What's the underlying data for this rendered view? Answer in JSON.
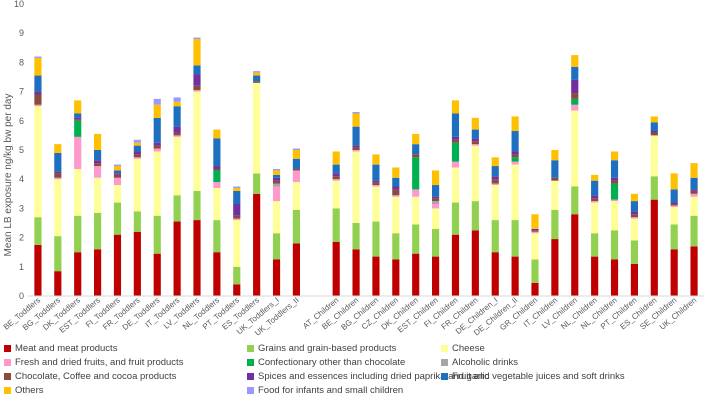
{
  "chart_data": {
    "type": "bar",
    "stacked": true,
    "title": "",
    "xlabel": "",
    "ylabel": "Mean LB exposure ng/kg bw per day",
    "ylim": [
      0,
      10
    ],
    "yticks": [
      0,
      1,
      2,
      3,
      4,
      5,
      6,
      7,
      8,
      9,
      10
    ],
    "grid": false,
    "legend_position": "bottom",
    "categories": [
      "BE_Toddlers",
      "BG_Toddlers",
      "DK_Toddlers",
      "EST_Toddlers",
      "FI_Toddlers",
      "FR_Toddlers",
      "DE_Toddlers",
      "IT_Toddlers",
      "LV_Toddlers",
      "NL_Toddlers",
      "PT_Toddlers",
      "ES_Toddlers",
      "UK_Toddlers_I",
      "UK_Toddlers_II",
      "",
      "AT_Children",
      "BE_Children",
      "BG_Children",
      "CZ_Children",
      "DK_Children",
      "EST_Children",
      "FI_Children",
      "FR_Children",
      "DE_Children_I",
      "DE_Children_II",
      "GR_Children",
      "IT_Children",
      "LV_Children",
      "NL_Children",
      "NL_Children",
      "PT_Children",
      "ES_Children",
      "SE_Children",
      "UK_Children"
    ],
    "series": [
      {
        "name": "Meat and meat products",
        "color": "#C00000",
        "values": [
          1.75,
          0.85,
          1.5,
          1.6,
          2.1,
          2.2,
          1.45,
          2.55,
          2.6,
          1.5,
          0.4,
          3.5,
          1.25,
          1.8,
          0,
          1.85,
          1.6,
          1.35,
          1.25,
          1.45,
          1.35,
          2.1,
          2.25,
          1.5,
          1.35,
          0.45,
          1.95,
          2.8,
          1.35,
          1.25,
          1.1,
          3.3,
          1.6,
          1.7
        ]
      },
      {
        "name": "Grains and grain-based products",
        "color": "#92D050",
        "values": [
          0.95,
          1.2,
          1.25,
          1.25,
          1.1,
          0.7,
          1.3,
          0.9,
          1.0,
          1.1,
          0.6,
          0.7,
          0.9,
          1.15,
          0,
          1.15,
          0.9,
          1.2,
          0.9,
          1.0,
          0.95,
          1.1,
          1.0,
          1.1,
          1.25,
          0.8,
          1.0,
          0.95,
          0.8,
          1.0,
          0.8,
          0.8,
          0.85,
          1.05
        ]
      },
      {
        "name": "Cheese",
        "color": "#FFFF99",
        "values": [
          3.8,
          1.95,
          1.6,
          1.2,
          0.6,
          1.8,
          2.2,
          2.0,
          3.4,
          1.1,
          1.6,
          3.1,
          1.1,
          0.95,
          0,
          0.95,
          2.45,
          1.2,
          1.25,
          0.95,
          0.7,
          1.2,
          1.9,
          1.2,
          1.9,
          0.9,
          1.0,
          2.6,
          1.05,
          1.0,
          0.75,
          1.4,
          0.6,
          0.65
        ]
      },
      {
        "name": "Fresh and dried fruits, and fruit products",
        "color": "#FF99CC",
        "values": [
          0.05,
          0.05,
          1.1,
          0.4,
          0.25,
          0.05,
          0.1,
          0.05,
          0.05,
          0.2,
          0.05,
          0,
          0.5,
          0.4,
          0,
          0.05,
          0.05,
          0.05,
          0.05,
          0.25,
          0.15,
          0.2,
          0.05,
          0.05,
          0.1,
          0.05,
          0,
          0.2,
          0.05,
          0.05,
          0.05,
          0,
          0.05,
          0.1
        ]
      },
      {
        "name": "Confectionary other than chocolate",
        "color": "#00B050",
        "values": [
          0,
          0,
          0.55,
          0,
          0,
          0,
          0,
          0,
          0,
          0.4,
          0,
          0,
          0,
          0,
          0,
          0,
          0,
          0,
          0,
          1.1,
          0,
          0.65,
          0,
          0,
          0.15,
          0,
          0,
          0.2,
          0,
          0.55,
          0,
          0,
          0,
          0
        ]
      },
      {
        "name": "Alcoholic drinks",
        "color": "#A6A6A6",
        "values": [
          0,
          0,
          0,
          0,
          0,
          0,
          0,
          0,
          0,
          0,
          0,
          0,
          0.1,
          0,
          0,
          0,
          0,
          0,
          0,
          0,
          0.1,
          0,
          0,
          0,
          0,
          0,
          0,
          0,
          0,
          0,
          0,
          0,
          0,
          0
        ]
      },
      {
        "name": "Chocolate, Coffee and cocoa products",
        "color": "#8B4B3C",
        "values": [
          0.35,
          0.15,
          0.05,
          0.1,
          0.1,
          0.1,
          0.1,
          0.1,
          0.15,
          0.05,
          0.1,
          0.05,
          0.1,
          0.05,
          0,
          0.1,
          0.1,
          0.1,
          0.2,
          0.1,
          0.1,
          0.1,
          0.1,
          0.15,
          0.1,
          0.05,
          0.1,
          0.2,
          0.1,
          0.1,
          0.1,
          0.1,
          0.05,
          0.1
        ]
      },
      {
        "name": "Spices and essences including dried paprika and garlic",
        "color": "#7030A0",
        "values": [
          0.1,
          0.05,
          0.05,
          0.1,
          0.05,
          0.1,
          0.1,
          0.2,
          0.4,
          0.1,
          0.4,
          0,
          0.1,
          0,
          0,
          0.1,
          0.05,
          0.05,
          0.1,
          0,
          0.05,
          0.1,
          0.1,
          0.1,
          0.1,
          0.05,
          0,
          0.45,
          0.1,
          0.1,
          0.1,
          0.05,
          0.05,
          0.05
        ]
      },
      {
        "name": "Fruit and vegetable juices and soft drinks",
        "color": "#1F6FC0",
        "values": [
          0.55,
          0.65,
          0.15,
          0.35,
          0.1,
          0.2,
          0.85,
          0.7,
          0.3,
          0.95,
          0.45,
          0.2,
          0.1,
          0.35,
          0,
          0.3,
          0.65,
          0.55,
          0.3,
          0.35,
          0.4,
          0.8,
          0.3,
          0.35,
          0.7,
          0,
          0.6,
          0.45,
          0.5,
          0.6,
          0.35,
          0.3,
          0.45,
          0.4
        ]
      },
      {
        "name": "Others",
        "color": "#FFC000",
        "values": [
          0.6,
          0.3,
          0.45,
          0.55,
          0.15,
          0.1,
          0.45,
          0.15,
          0.9,
          0.3,
          0.1,
          0.1,
          0.15,
          0.3,
          0,
          0.45,
          0.45,
          0.35,
          0.35,
          0.35,
          0.5,
          0.45,
          0.4,
          0.3,
          0.5,
          0.5,
          0.35,
          0.4,
          0.2,
          0.3,
          0.25,
          0.2,
          0.55,
          0.5
        ]
      },
      {
        "name": "Food for infants and small children",
        "color": "#9999FF",
        "values": [
          0.05,
          0,
          0,
          0,
          0.05,
          0.1,
          0.2,
          0.15,
          0.05,
          0,
          0.05,
          0.05,
          0.05,
          0.05,
          0,
          0,
          0.05,
          0,
          0,
          0,
          0,
          0,
          0,
          0,
          0,
          0,
          0,
          0,
          0,
          0,
          0,
          0,
          0,
          0
        ]
      }
    ]
  }
}
